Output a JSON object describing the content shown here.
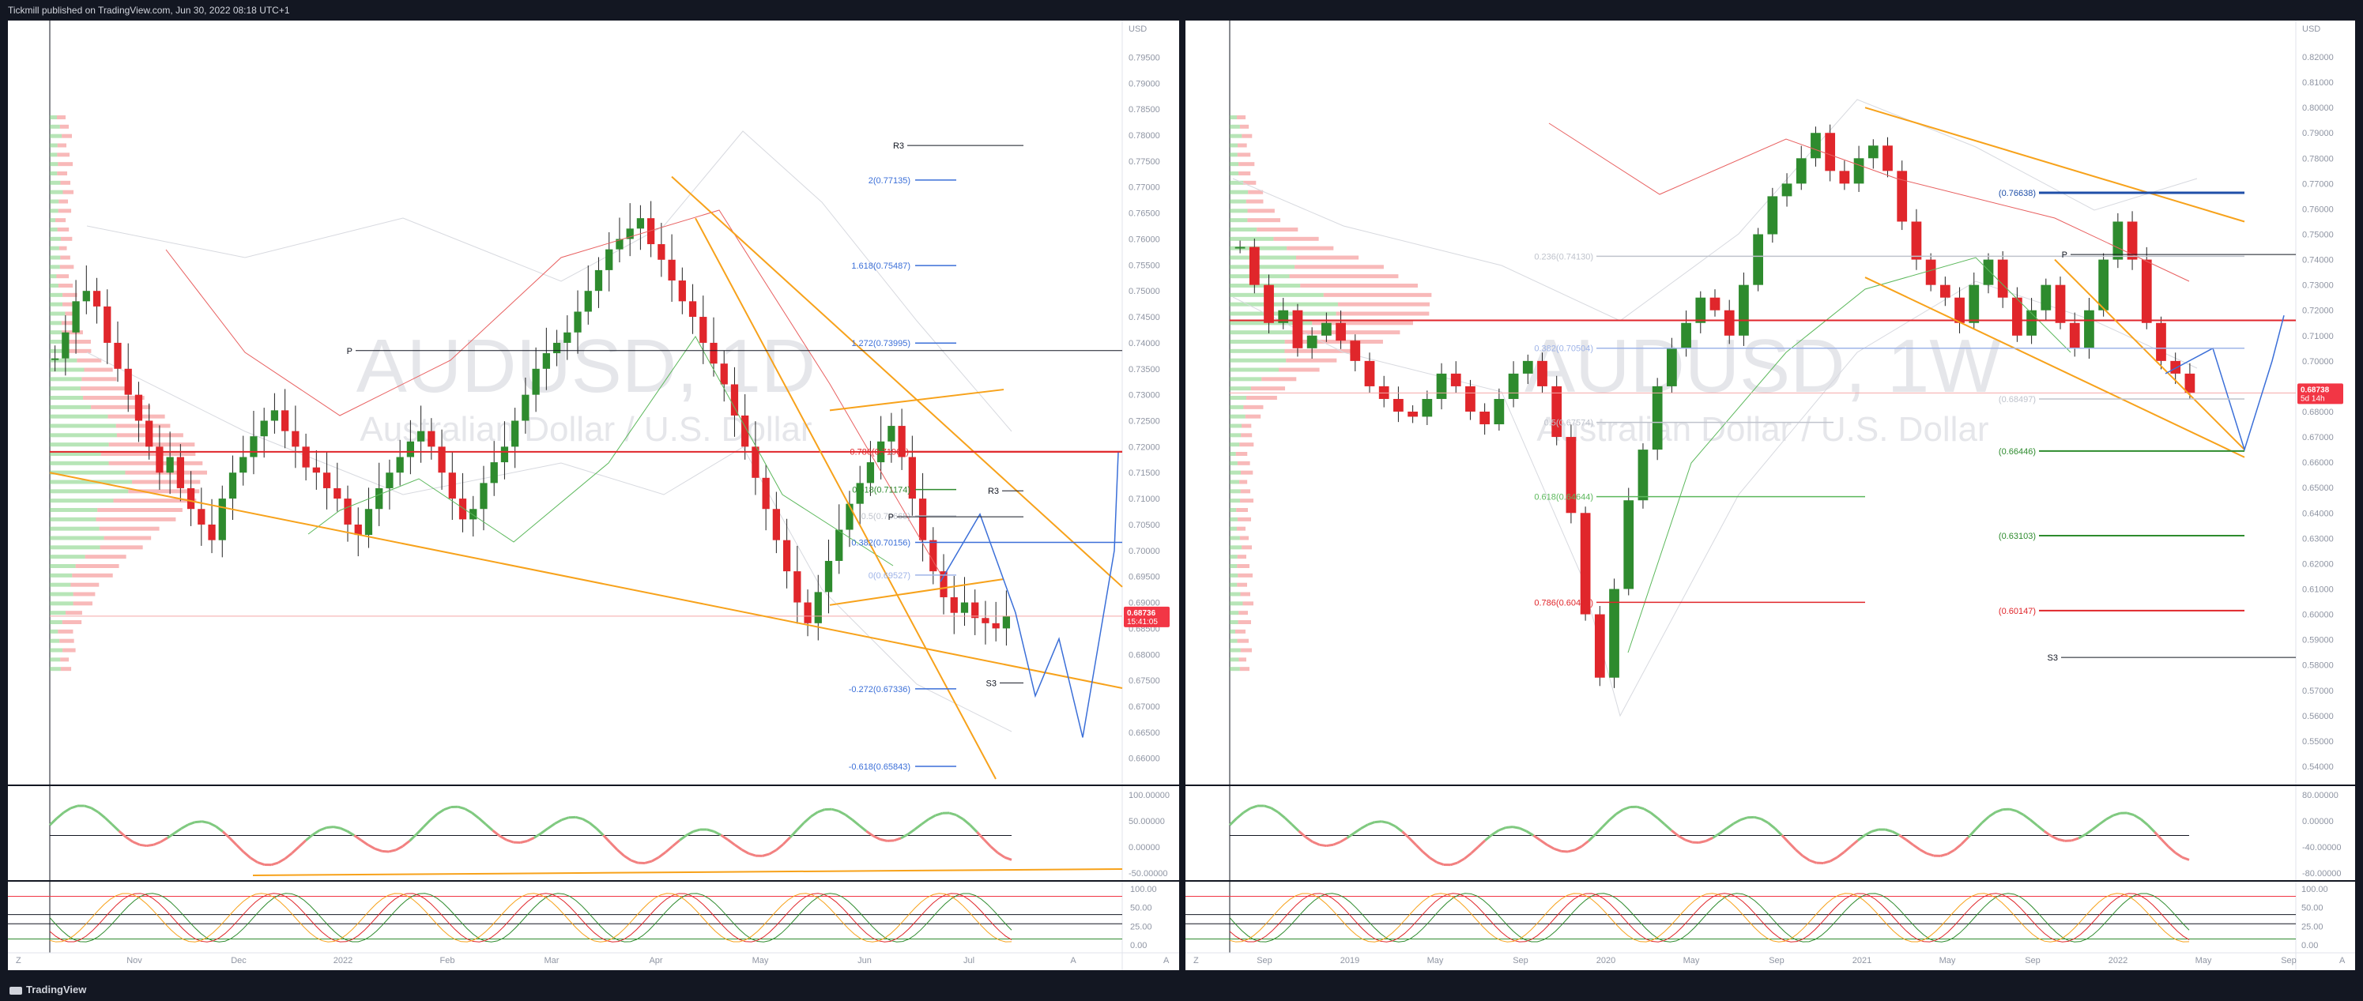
{
  "header": {
    "text": "Tickmill published on TradingView.com, Jun 30, 2022 08:18 UTC+1"
  },
  "footer": {
    "logo": "TradingView"
  },
  "colors": {
    "up": "#2e8b2e",
    "down": "#e0262b",
    "trend": "#f7a21b",
    "projection": "#3b6fd8",
    "pivot": "#131722",
    "rsi_up": "#7fc97f",
    "rsi_down": "#f28080"
  },
  "left": {
    "watermark_symbol": "AUDUSD, 1D",
    "watermark_name": "Australian Dollar / U.S. Dollar",
    "currency": "USD",
    "price_labels": [
      "0.79500",
      "0.79000",
      "0.78500",
      "0.78000",
      "0.77500",
      "0.77000",
      "0.76500",
      "0.76000",
      "0.75500",
      "0.75000",
      "0.74500",
      "0.74000",
      "0.73500",
      "0.73000",
      "0.72500",
      "0.72000",
      "0.71500",
      "0.71000",
      "0.70500",
      "0.70000",
      "0.69500",
      "0.69000",
      "0.68500",
      "0.68000",
      "0.67500",
      "0.67000",
      "0.66500",
      "0.66000"
    ],
    "last_price": "0.68736",
    "countdown": "15:41:05",
    "time_labels": [
      "Nov",
      "Dec",
      "2022",
      "Feb",
      "Mar",
      "Apr",
      "May",
      "Jun",
      "Jul",
      "A"
    ],
    "fib_labels": [
      "2(0.77135)",
      "1.618(0.75487)",
      "1.272(0.73995)",
      "0.786(0.71903)",
      "0.618(0.71174)",
      "0.5(0.70665)",
      "0.382(0.70156)",
      "0(0.69527)",
      "-0.272(0.67336)",
      "-0.618(0.65843)"
    ],
    "pivot_labels": [
      "R3",
      "P",
      "R3",
      "P",
      "S3"
    ],
    "rsi_labels": [
      "100.00000",
      "50.00000",
      "0.00000",
      "-50.00000"
    ],
    "stoch_labels": [
      "100.00",
      "50.00",
      "25.00",
      "0.00"
    ],
    "corner_labels": [
      "Z",
      "A"
    ]
  },
  "right": {
    "watermark_symbol": "AUDUSD, 1W",
    "watermark_name": "Australian Dollar / U.S. Dollar",
    "currency": "USD",
    "price_labels": [
      "0.82000",
      "0.81000",
      "0.80000",
      "0.79000",
      "0.78000",
      "0.77000",
      "0.76000",
      "0.75000",
      "0.74000",
      "0.73000",
      "0.72000",
      "0.71000",
      "0.70000",
      "0.69000",
      "0.68000",
      "0.67000",
      "0.66000",
      "0.65000",
      "0.64000",
      "0.63000",
      "0.62000",
      "0.61000",
      "0.60000",
      "0.59000",
      "0.58000",
      "0.57000",
      "0.56000",
      "0.55000",
      "0.54000"
    ],
    "last_price": "0.68738",
    "countdown": "5d 14h",
    "time_labels": [
      "Sep",
      "2019",
      "May",
      "Sep",
      "2020",
      "May",
      "Sep",
      "2021",
      "May",
      "Sep",
      "2022",
      "May",
      "Sep"
    ],
    "fib_labels": [
      "(0.76638)",
      "0.236(0.74130)",
      "0.382(0.70504)",
      "0.5(0.67574)",
      "0.618(0.64644)",
      "0.786(0.60473)",
      "(0.68497)",
      "(0.66446)",
      "(0.63103)",
      "(0.60147)"
    ],
    "pivot_labels": [
      "P",
      "S3"
    ],
    "rsi_labels": [
      "80.00000",
      "0.00000",
      "-40.00000",
      "-80.00000"
    ],
    "stoch_labels": [
      "100.00",
      "50.00",
      "25.00",
      "0.00"
    ],
    "corner_labels": [
      "Z",
      "A"
    ]
  },
  "chart_data": [
    {
      "type": "candlestick",
      "title": "AUDUSD, 1D",
      "subtitle": "Australian Dollar / U.S. Dollar",
      "ylabel": "USD",
      "ylim": [
        0.656,
        0.7975
      ],
      "x": [
        "Nov",
        "Dec",
        "2022",
        "Feb",
        "Mar",
        "Apr",
        "May",
        "Jun",
        "Jul",
        "A"
      ],
      "close_series": [
        0.737,
        0.742,
        0.748,
        0.75,
        0.747,
        0.74,
        0.735,
        0.73,
        0.725,
        0.72,
        0.715,
        0.718,
        0.712,
        0.708,
        0.705,
        0.702,
        0.71,
        0.715,
        0.718,
        0.722,
        0.725,
        0.727,
        0.723,
        0.72,
        0.716,
        0.715,
        0.712,
        0.71,
        0.705,
        0.703,
        0.708,
        0.712,
        0.715,
        0.718,
        0.721,
        0.723,
        0.72,
        0.715,
        0.71,
        0.706,
        0.708,
        0.713,
        0.717,
        0.72,
        0.725,
        0.73,
        0.735,
        0.738,
        0.74,
        0.742,
        0.746,
        0.75,
        0.754,
        0.758,
        0.76,
        0.762,
        0.764,
        0.759,
        0.756,
        0.752,
        0.748,
        0.745,
        0.74,
        0.736,
        0.732,
        0.726,
        0.72,
        0.714,
        0.708,
        0.702,
        0.696,
        0.69,
        0.686,
        0.692,
        0.698,
        0.704,
        0.709,
        0.713,
        0.717,
        0.721,
        0.724,
        0.718,
        0.71,
        0.702,
        0.696,
        0.691,
        0.688,
        0.69,
        0.687,
        0.686,
        0.685,
        0.6874
      ],
      "last": 0.68736,
      "fibonacci": {
        "2": 0.77135,
        "1.618": 0.75487,
        "1.272": 0.73995,
        "0.786": 0.71903,
        "0.618": 0.71174,
        "0.5": 0.70665,
        "0.382": 0.70156,
        "0": 0.69527,
        "-0.272": 0.67336,
        "-0.618": 0.65843
      },
      "pivots": {
        "R3": [
          0.778,
          0.7115
        ],
        "P": [
          0.7385,
          0.7065
        ],
        "S3": 0.6745
      },
      "horizontal_line": 0.719,
      "indicators": [
        "RSI",
        "Stochastic"
      ],
      "legend": "none",
      "grid": false
    },
    {
      "type": "candlestick",
      "title": "AUDUSD, 1W",
      "subtitle": "Australian Dollar / U.S. Dollar",
      "ylabel": "USD",
      "ylim": [
        0.535,
        0.825
      ],
      "x": [
        "Sep",
        "2019",
        "May",
        "Sep",
        "2020",
        "May",
        "Sep",
        "2021",
        "May",
        "Sep",
        "2022",
        "May",
        "Sep"
      ],
      "close_series": [
        0.745,
        0.73,
        0.715,
        0.72,
        0.705,
        0.71,
        0.715,
        0.708,
        0.7,
        0.69,
        0.685,
        0.68,
        0.678,
        0.685,
        0.695,
        0.69,
        0.68,
        0.675,
        0.685,
        0.695,
        0.7,
        0.69,
        0.67,
        0.64,
        0.6,
        0.575,
        0.61,
        0.645,
        0.665,
        0.69,
        0.705,
        0.715,
        0.725,
        0.72,
        0.71,
        0.73,
        0.75,
        0.765,
        0.77,
        0.78,
        0.79,
        0.775,
        0.77,
        0.78,
        0.785,
        0.775,
        0.755,
        0.74,
        0.73,
        0.725,
        0.715,
        0.73,
        0.74,
        0.725,
        0.71,
        0.72,
        0.73,
        0.715,
        0.705,
        0.72,
        0.74,
        0.755,
        0.74,
        0.715,
        0.7,
        0.695,
        0.6874
      ],
      "last": 0.68738,
      "fibonacci": {
        "0.236": 0.7413,
        "0.382": 0.70504,
        "0.5": 0.67574,
        "0.618": 0.64644,
        "0.786": 0.60473
      },
      "targets": [
        0.76638,
        0.68497,
        0.66446,
        0.63103,
        0.60147
      ],
      "pivots": {
        "P": 0.742,
        "S3": 0.583
      },
      "horizontal_line": 0.716,
      "indicators": [
        "RSI",
        "Stochastic"
      ],
      "legend": "none",
      "grid": false
    }
  ]
}
